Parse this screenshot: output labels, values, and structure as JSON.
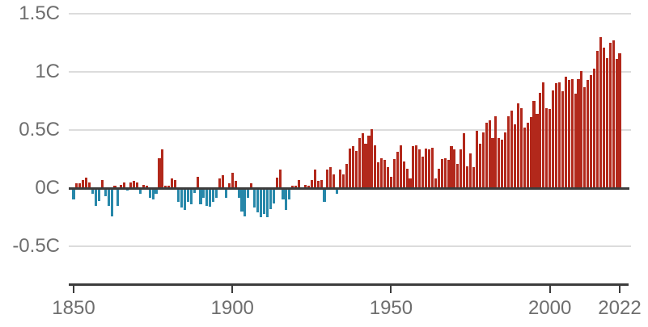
{
  "chart_data": {
    "type": "bar",
    "title": "",
    "xlabel": "",
    "ylabel": "",
    "start_year": 1850,
    "end_year": 2022,
    "ylim": [
      -0.75,
      1.55
    ],
    "grid": true,
    "colors": {
      "positive_bar": "#b2281b",
      "negative_bar": "#2787a9",
      "gridline": "#dcdcdc",
      "axis_line": "#3c3c3c",
      "tick_label": "#6e6e6e"
    },
    "y_axis": {
      "ticks": [
        {
          "value": 1.5,
          "label": "1.5C"
        },
        {
          "value": 1.0,
          "label": "1C"
        },
        {
          "value": 0.5,
          "label": "0.5C"
        },
        {
          "value": 0.0,
          "label": "0C"
        },
        {
          "value": -0.5,
          "label": "-0.5C"
        }
      ]
    },
    "x_axis": {
      "ticks": [
        {
          "value": 1850,
          "label": "1850"
        },
        {
          "value": 1900,
          "label": "1900"
        },
        {
          "value": 1950,
          "label": "1950"
        },
        {
          "value": 2000,
          "label": "2000"
        },
        {
          "value": 2022,
          "label": "2022"
        }
      ]
    },
    "values": [
      -0.1,
      0.04,
      0.04,
      0.07,
      0.09,
      0.05,
      -0.05,
      -0.15,
      -0.11,
      0.07,
      -0.07,
      -0.15,
      -0.24,
      0.02,
      -0.15,
      0.03,
      0.05,
      -0.02,
      0.05,
      0.06,
      0.05,
      -0.05,
      0.03,
      0.02,
      -0.08,
      -0.1,
      -0.05,
      0.26,
      0.33,
      0.02,
      0.02,
      0.08,
      0.07,
      -0.12,
      -0.17,
      -0.19,
      -0.12,
      -0.14,
      -0.04,
      0.1,
      -0.14,
      -0.08,
      -0.15,
      -0.16,
      -0.12,
      -0.08,
      0.08,
      0.11,
      -0.08,
      0.04,
      0.13,
      0.06,
      -0.08,
      -0.2,
      -0.24,
      -0.08,
      0.04,
      -0.17,
      -0.21,
      -0.25,
      -0.22,
      -0.25,
      -0.18,
      -0.13,
      0.09,
      0.16,
      -0.1,
      -0.19,
      -0.1,
      0.02,
      0.02,
      0.07,
      -0.01,
      0.03,
      0.02,
      0.07,
      0.16,
      0.06,
      0.07,
      -0.12,
      0.16,
      0.18,
      0.12,
      -0.05,
      0.16,
      0.12,
      0.21,
      0.34,
      0.36,
      0.32,
      0.43,
      0.47,
      0.38,
      0.45,
      0.51,
      0.37,
      0.22,
      0.26,
      0.24,
      0.18,
      0.1,
      0.25,
      0.31,
      0.37,
      0.23,
      0.17,
      0.08,
      0.36,
      0.37,
      0.33,
      0.27,
      0.34,
      0.33,
      0.35,
      0.08,
      0.17,
      0.25,
      0.26,
      0.24,
      0.36,
      0.33,
      0.21,
      0.33,
      0.47,
      0.19,
      0.3,
      0.18,
      0.49,
      0.38,
      0.48,
      0.56,
      0.58,
      0.43,
      0.62,
      0.43,
      0.42,
      0.48,
      0.62,
      0.67,
      0.55,
      0.73,
      0.69,
      0.52,
      0.56,
      0.61,
      0.75,
      0.64,
      0.82,
      0.91,
      0.69,
      0.68,
      0.84,
      0.9,
      0.91,
      0.83,
      0.96,
      0.93,
      0.94,
      0.81,
      0.94,
      1.01,
      0.87,
      0.93,
      0.97,
      1.03,
      1.18,
      1.3,
      1.21,
      1.12,
      1.25,
      1.27,
      1.11,
      1.16
    ]
  }
}
